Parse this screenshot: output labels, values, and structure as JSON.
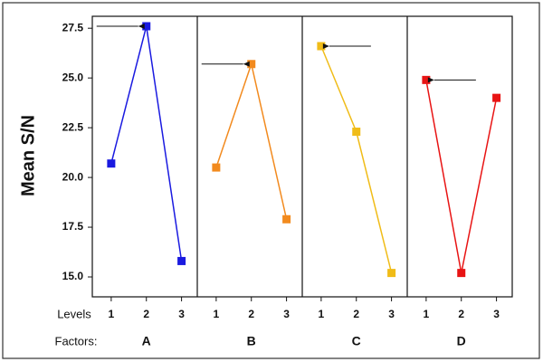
{
  "chart_data": {
    "type": "line",
    "y_label": "Mean S/N",
    "levels_label": "Levels",
    "factors_label": "Factors:",
    "categories": [
      "1",
      "2",
      "3"
    ],
    "ylim": [
      14.0,
      28.1
    ],
    "yticks": [
      27.5,
      {
        "value": 25.0,
        "label": "25.0"
      },
      22.5,
      {
        "value": 20.0,
        "label": "20.0"
      },
      17.5,
      {
        "value": 15.0,
        "label": "15.0"
      }
    ],
    "series": [
      {
        "name": "A",
        "color": "#1a1ae0",
        "values": [
          20.7,
          27.6,
          15.8
        ]
      },
      {
        "name": "B",
        "color": "#f28a1e",
        "values": [
          20.5,
          25.7,
          17.9
        ]
      },
      {
        "name": "C",
        "color": "#f0bc18",
        "values": [
          26.6,
          22.3,
          15.2
        ]
      },
      {
        "name": "D",
        "color": "#e81414",
        "values": [
          24.9,
          15.2,
          24.0
        ]
      }
    ]
  }
}
